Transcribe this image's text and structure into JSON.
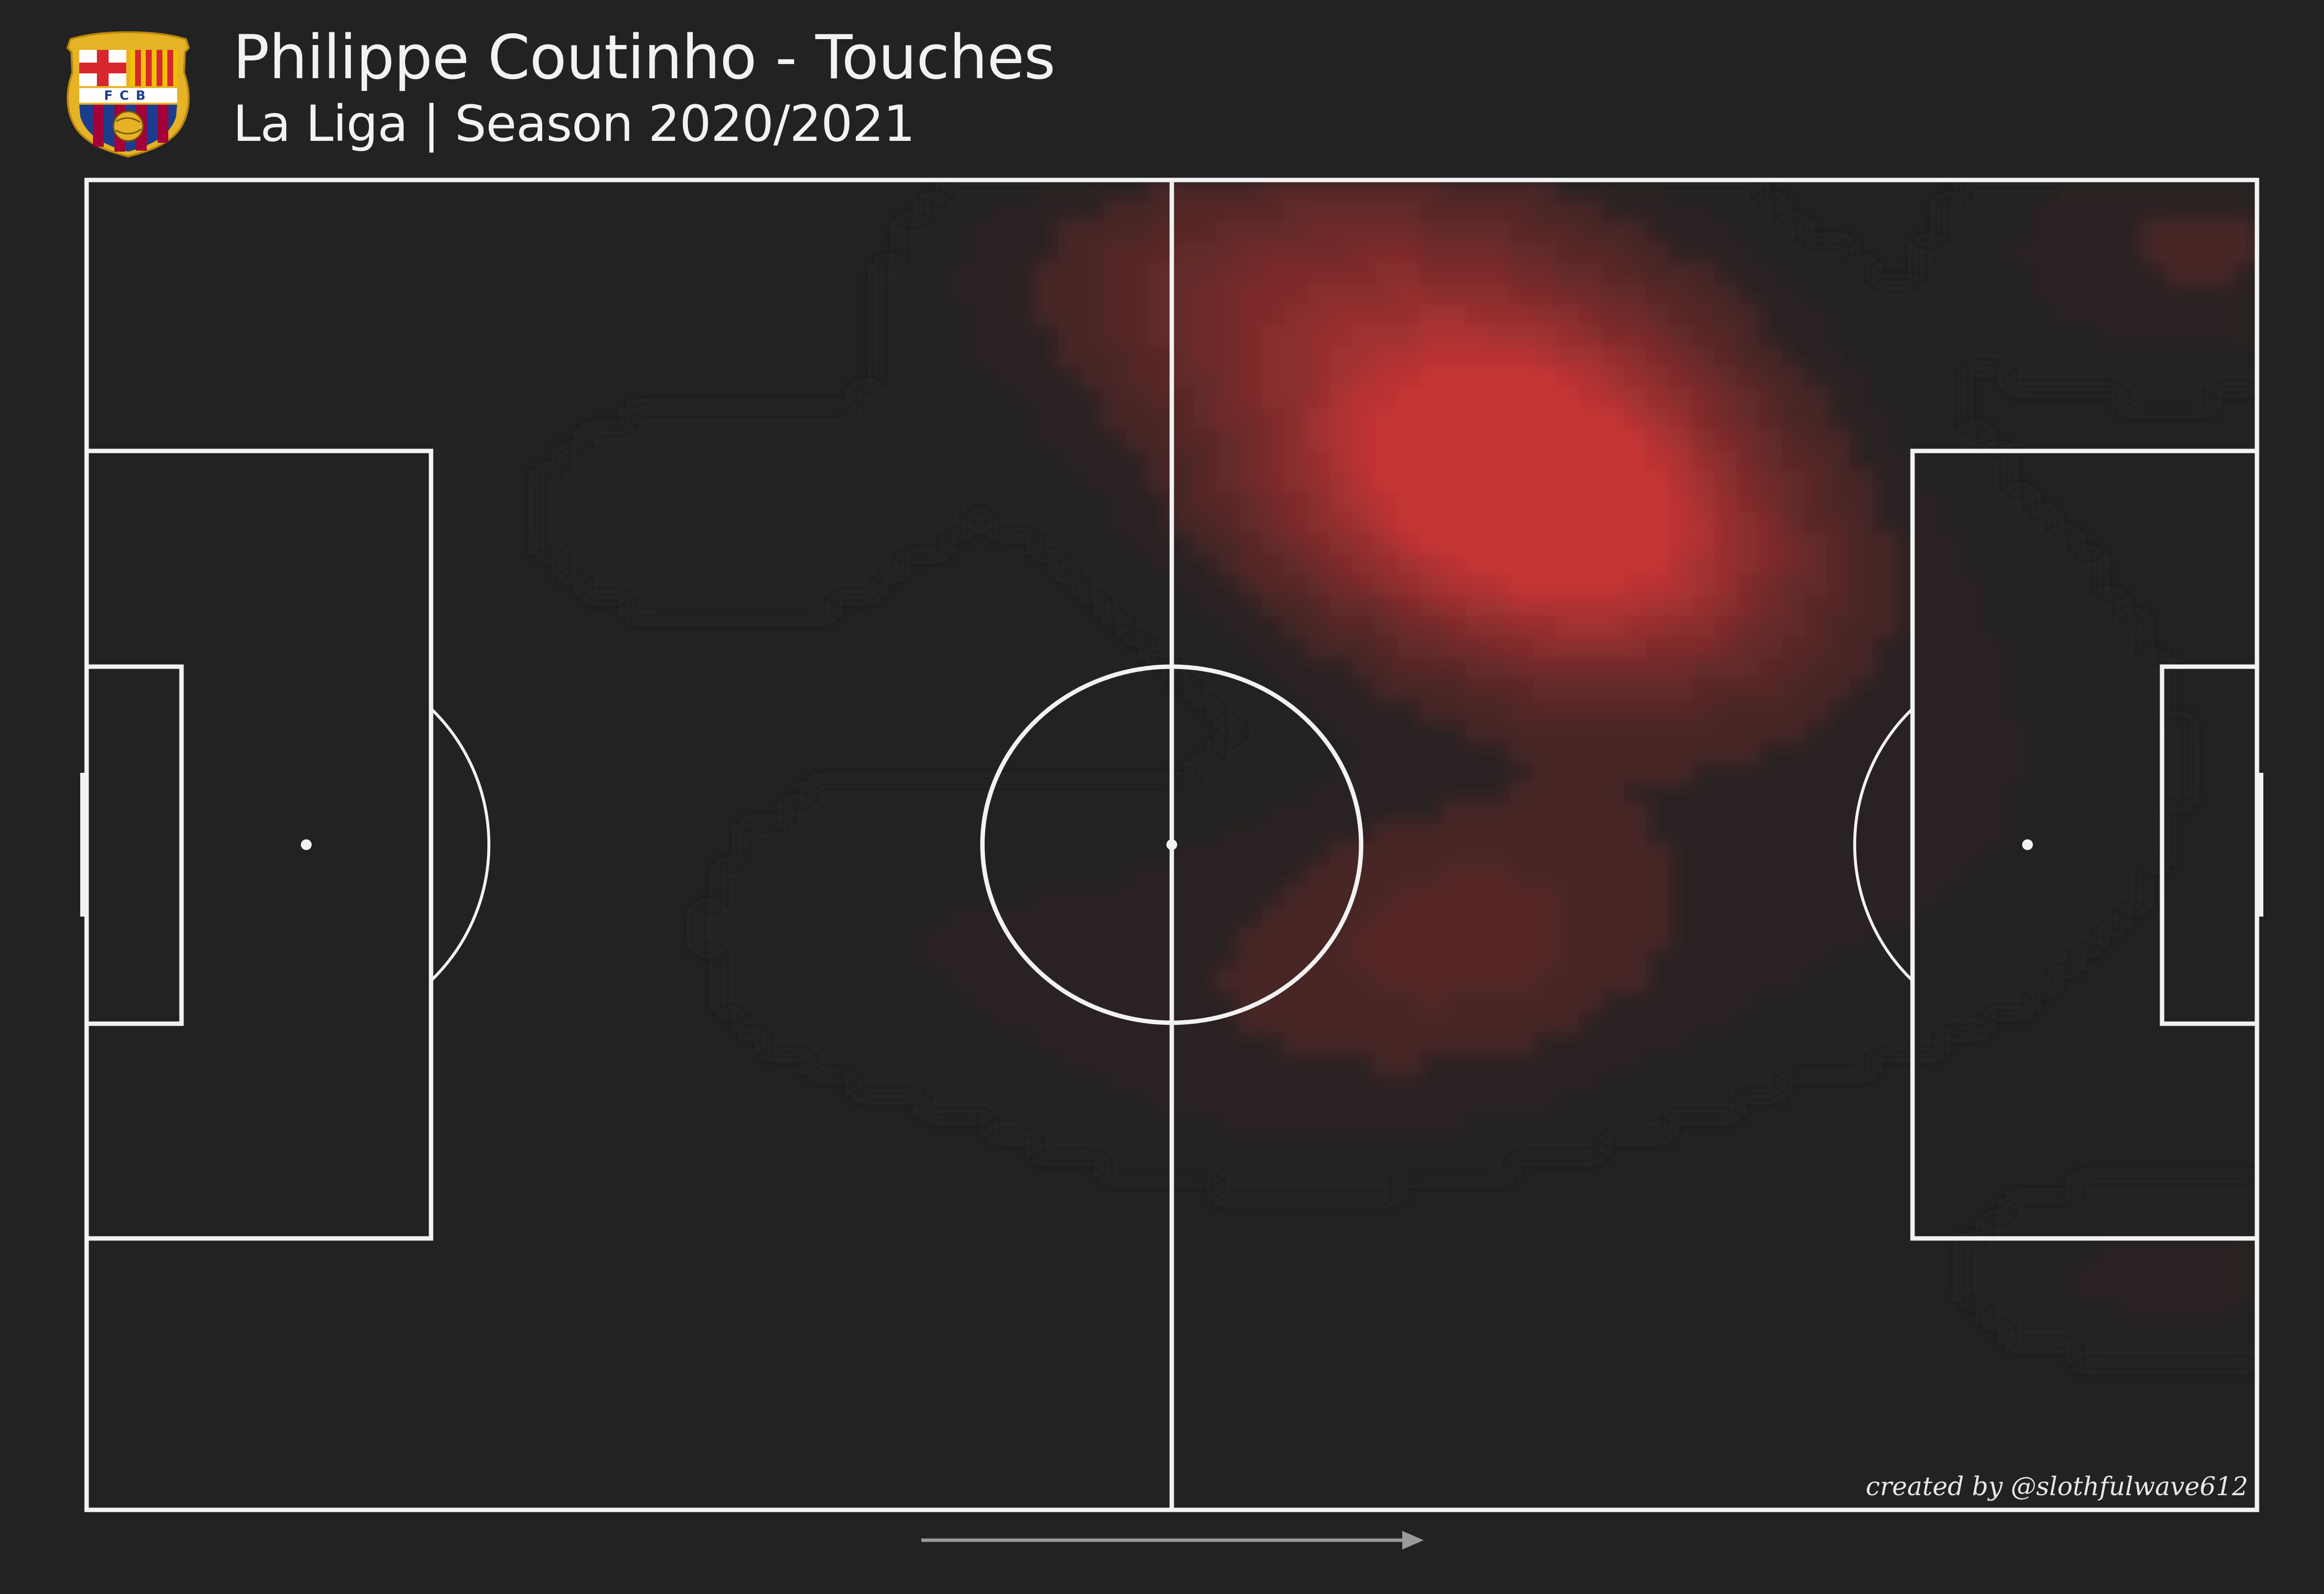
{
  "header": {
    "title": "Philippe Coutinho - Touches",
    "subtitle": "La Liga | Season 2020/2021",
    "crest_text": "FCB"
  },
  "footer": {
    "credit": "created by @slothfulwave612"
  },
  "colors": {
    "background": "#222222",
    "pitch_lines": "#f2f2f2",
    "heat_low": "#2a2323",
    "heat_high": "#c63434",
    "arrow": "#9a9a9a"
  },
  "chart_data": {
    "type": "heatmap",
    "subject": "pitch touch density",
    "x_range": [
      0,
      120
    ],
    "y_range": [
      0,
      80
    ],
    "attack_direction": "left-to-right",
    "grid": false,
    "legend": "none",
    "hotspots": [
      {
        "x": 79,
        "y": 62,
        "sx": 8,
        "sy": 6,
        "intensity": 1.0
      },
      {
        "x": 74,
        "y": 68,
        "sx": 10,
        "sy": 8,
        "intensity": 0.45
      },
      {
        "x": 86,
        "y": 56,
        "sx": 7,
        "sy": 5,
        "intensity": 0.45
      },
      {
        "x": 64,
        "y": 74,
        "sx": 10,
        "sy": 5,
        "intensity": 0.25
      },
      {
        "x": 77,
        "y": 35,
        "sx": 8,
        "sy": 6,
        "intensity": 0.2
      },
      {
        "x": 66,
        "y": 30,
        "sx": 10,
        "sy": 7,
        "intensity": 0.12
      },
      {
        "x": 117,
        "y": 76,
        "sx": 8,
        "sy": 5,
        "intensity": 0.18
      },
      {
        "x": 116,
        "y": 14,
        "sx": 9,
        "sy": 4,
        "intensity": 0.1
      },
      {
        "x": 35,
        "y": 60,
        "sx": 10,
        "sy": 6,
        "intensity": 0.07
      },
      {
        "x": 45,
        "y": 35,
        "sx": 10,
        "sy": 8,
        "intensity": 0.07
      },
      {
        "x": 95,
        "y": 45,
        "sx": 14,
        "sy": 12,
        "intensity": 0.12
      }
    ]
  }
}
